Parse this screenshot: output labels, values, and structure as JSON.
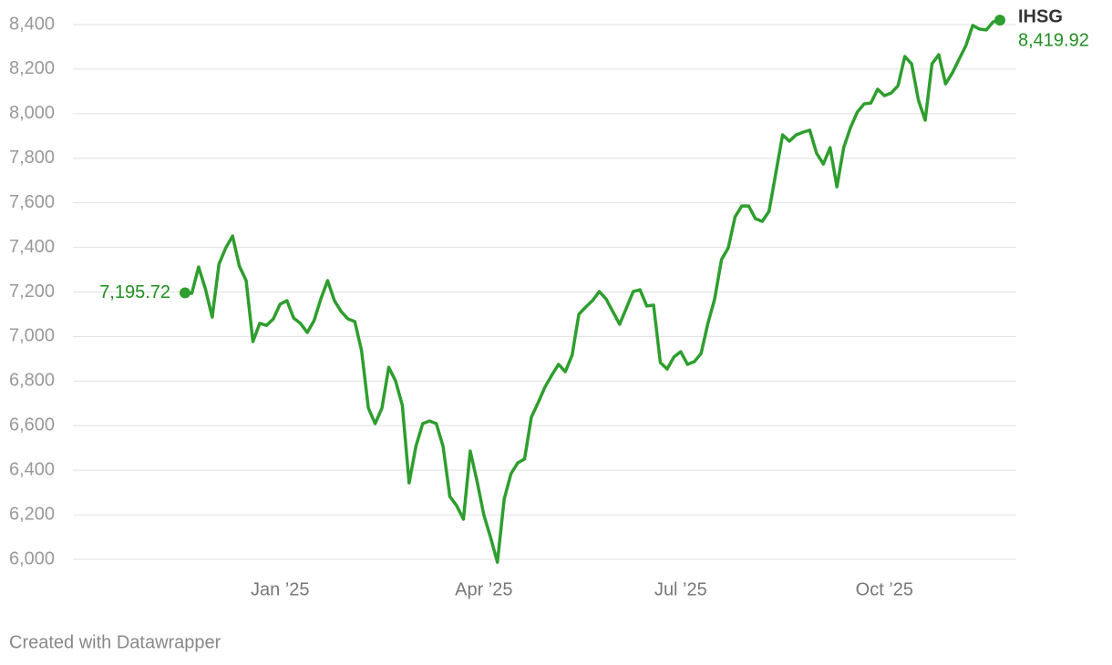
{
  "chart_data": {
    "type": "line",
    "credit": "Created with Datawrapper",
    "categories": [
      null,
      null,
      null,
      null,
      null,
      null,
      null,
      null,
      null,
      null,
      null,
      null,
      null,
      null,
      "Jan ’25",
      null,
      null,
      null,
      null,
      null,
      null,
      null,
      null,
      null,
      null,
      null,
      null,
      null,
      null,
      null,
      null,
      null,
      null,
      null,
      null,
      null,
      null,
      null,
      null,
      null,
      null,
      null,
      null,
      null,
      "Apr ’25",
      null,
      null,
      null,
      null,
      null,
      null,
      null,
      null,
      null,
      null,
      null,
      null,
      null,
      null,
      null,
      null,
      null,
      null,
      null,
      null,
      null,
      null,
      null,
      null,
      null,
      null,
      null,
      null,
      "Jul ’25",
      null,
      null,
      null,
      null,
      null,
      null,
      null,
      null,
      null,
      null,
      null,
      null,
      null,
      null,
      null,
      null,
      null,
      null,
      null,
      null,
      null,
      null,
      null,
      null,
      null,
      null,
      null,
      null,
      null,
      "Oct ’25",
      null,
      null,
      null,
      null,
      null,
      null,
      null,
      null,
      null,
      null,
      null,
      null,
      null,
      null,
      null,
      null,
      null
    ],
    "series": [
      {
        "name": "IHSG",
        "color": "#2e9e2e",
        "values": [
          7195.72,
          7194,
          7312,
          7214,
          7087,
          7325,
          7398,
          7451,
          7316,
          7251,
          6977,
          7059,
          7050,
          7079,
          7145,
          7161,
          7083,
          7059,
          7018,
          7071,
          7169,
          7251,
          7161,
          7112,
          7079,
          7067,
          6936,
          6679,
          6609,
          6679,
          6862,
          6801,
          6691,
          6343,
          6507,
          6609,
          6621,
          6609,
          6507,
          6282,
          6241,
          6180,
          6486,
          6351,
          6200,
          6098,
          5987,
          6270,
          6384,
          6433,
          6450,
          6638,
          6703,
          6773,
          6826,
          6875,
          6842,
          6916,
          7100,
          7132,
          7161,
          7202,
          7169,
          7112,
          7055,
          7128,
          7202,
          7210,
          7137,
          7141,
          6883,
          6854,
          6908,
          6932,
          6875,
          6887,
          6924,
          7059,
          7169,
          7345,
          7398,
          7537,
          7586,
          7586,
          7529,
          7517,
          7562,
          7733,
          7905,
          7877,
          7905,
          7917,
          7926,
          7823,
          7774,
          7848,
          7672,
          7848,
          7938,
          8007,
          8044,
          8048,
          8110,
          8081,
          8093,
          8126,
          8257,
          8224,
          8061,
          7971,
          8224,
          8265,
          8134,
          8183,
          8245,
          8306,
          8396,
          8380,
          8376,
          8412,
          8419.92
        ],
        "value_labels": [
          "7,195.72",
          null,
          null,
          null,
          null,
          null,
          null,
          null,
          null,
          null,
          null,
          null,
          null,
          null,
          null,
          null,
          null,
          null,
          null,
          null,
          null,
          null,
          null,
          null,
          null,
          null,
          null,
          null,
          null,
          null,
          null,
          null,
          null,
          null,
          null,
          null,
          null,
          null,
          null,
          null,
          null,
          null,
          null,
          null,
          null,
          null,
          null,
          null,
          null,
          null,
          null,
          null,
          null,
          null,
          null,
          null,
          null,
          null,
          null,
          null,
          null,
          null,
          null,
          null,
          null,
          null,
          null,
          null,
          null,
          null,
          null,
          null,
          null,
          null,
          null,
          null,
          null,
          null,
          null,
          null,
          null,
          null,
          null,
          null,
          null,
          null,
          null,
          null,
          null,
          null,
          null,
          null,
          null,
          null,
          null,
          null,
          null,
          null,
          null,
          null,
          null,
          null,
          null,
          null,
          null,
          null,
          null,
          null,
          null,
          null,
          null,
          null,
          null,
          null,
          null,
          null,
          null,
          null,
          null,
          null,
          "8,419.92"
        ]
      }
    ],
    "ylim": [
      6000,
      8400
    ],
    "yticks": [
      {
        "value": 6000,
        "label": "6,000"
      },
      {
        "value": 6200,
        "label": "6,200"
      },
      {
        "value": 6400,
        "label": "6,400"
      },
      {
        "value": 6600,
        "label": "6,600"
      },
      {
        "value": 6800,
        "label": "6,800"
      },
      {
        "value": 7000,
        "label": "7,000"
      },
      {
        "value": 7200,
        "label": "7,200"
      },
      {
        "value": 7400,
        "label": "7,400"
      },
      {
        "value": 7600,
        "label": "7,600"
      },
      {
        "value": 7800,
        "label": "7,800"
      },
      {
        "value": 8000,
        "label": "8,000"
      },
      {
        "value": 8200,
        "label": "8,200"
      },
      {
        "value": 8400,
        "label": "8,400"
      }
    ],
    "grid": true
  }
}
